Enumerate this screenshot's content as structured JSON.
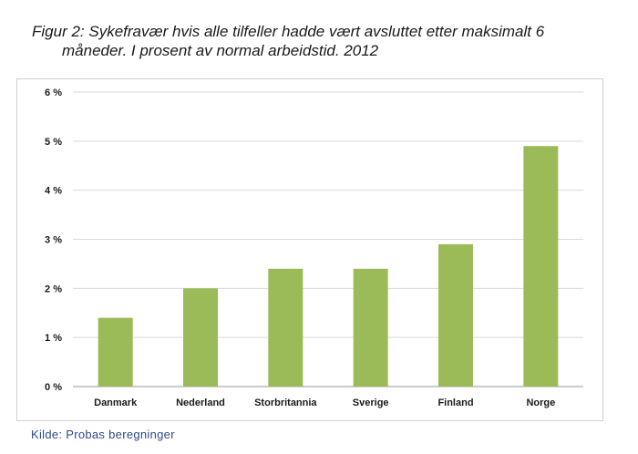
{
  "figure": {
    "title_line1": "Figur 2: Sykefravær hvis alle tilfeller hadde vært avsluttet etter maksimalt 6",
    "title_line2": "måneder. I prosent av normal arbeidstid. 2012",
    "source": "Kilde: Probas beregninger"
  },
  "chart_data": {
    "type": "bar",
    "title": "Figur 2: Sykefravær hvis alle tilfeller hadde vært avsluttet etter maksimalt 6 måneder. I prosent av normal arbeidstid. 2012",
    "categories": [
      "Danmark",
      "Nederland",
      "Storbritannia",
      "Sverige",
      "Finland",
      "Norge"
    ],
    "values": [
      1.4,
      2.0,
      2.4,
      2.4,
      2.9,
      4.9
    ],
    "ylim": [
      0,
      6
    ],
    "yticks": [
      0,
      1,
      2,
      3,
      4,
      5,
      6
    ],
    "ytick_labels": [
      "0 %",
      "1 %",
      "2 %",
      "3 %",
      "4 %",
      "5 %",
      "6 %"
    ],
    "xlabel": "",
    "ylabel": "",
    "bar_color": "#9bbb59",
    "grid": true,
    "legend": "none"
  }
}
